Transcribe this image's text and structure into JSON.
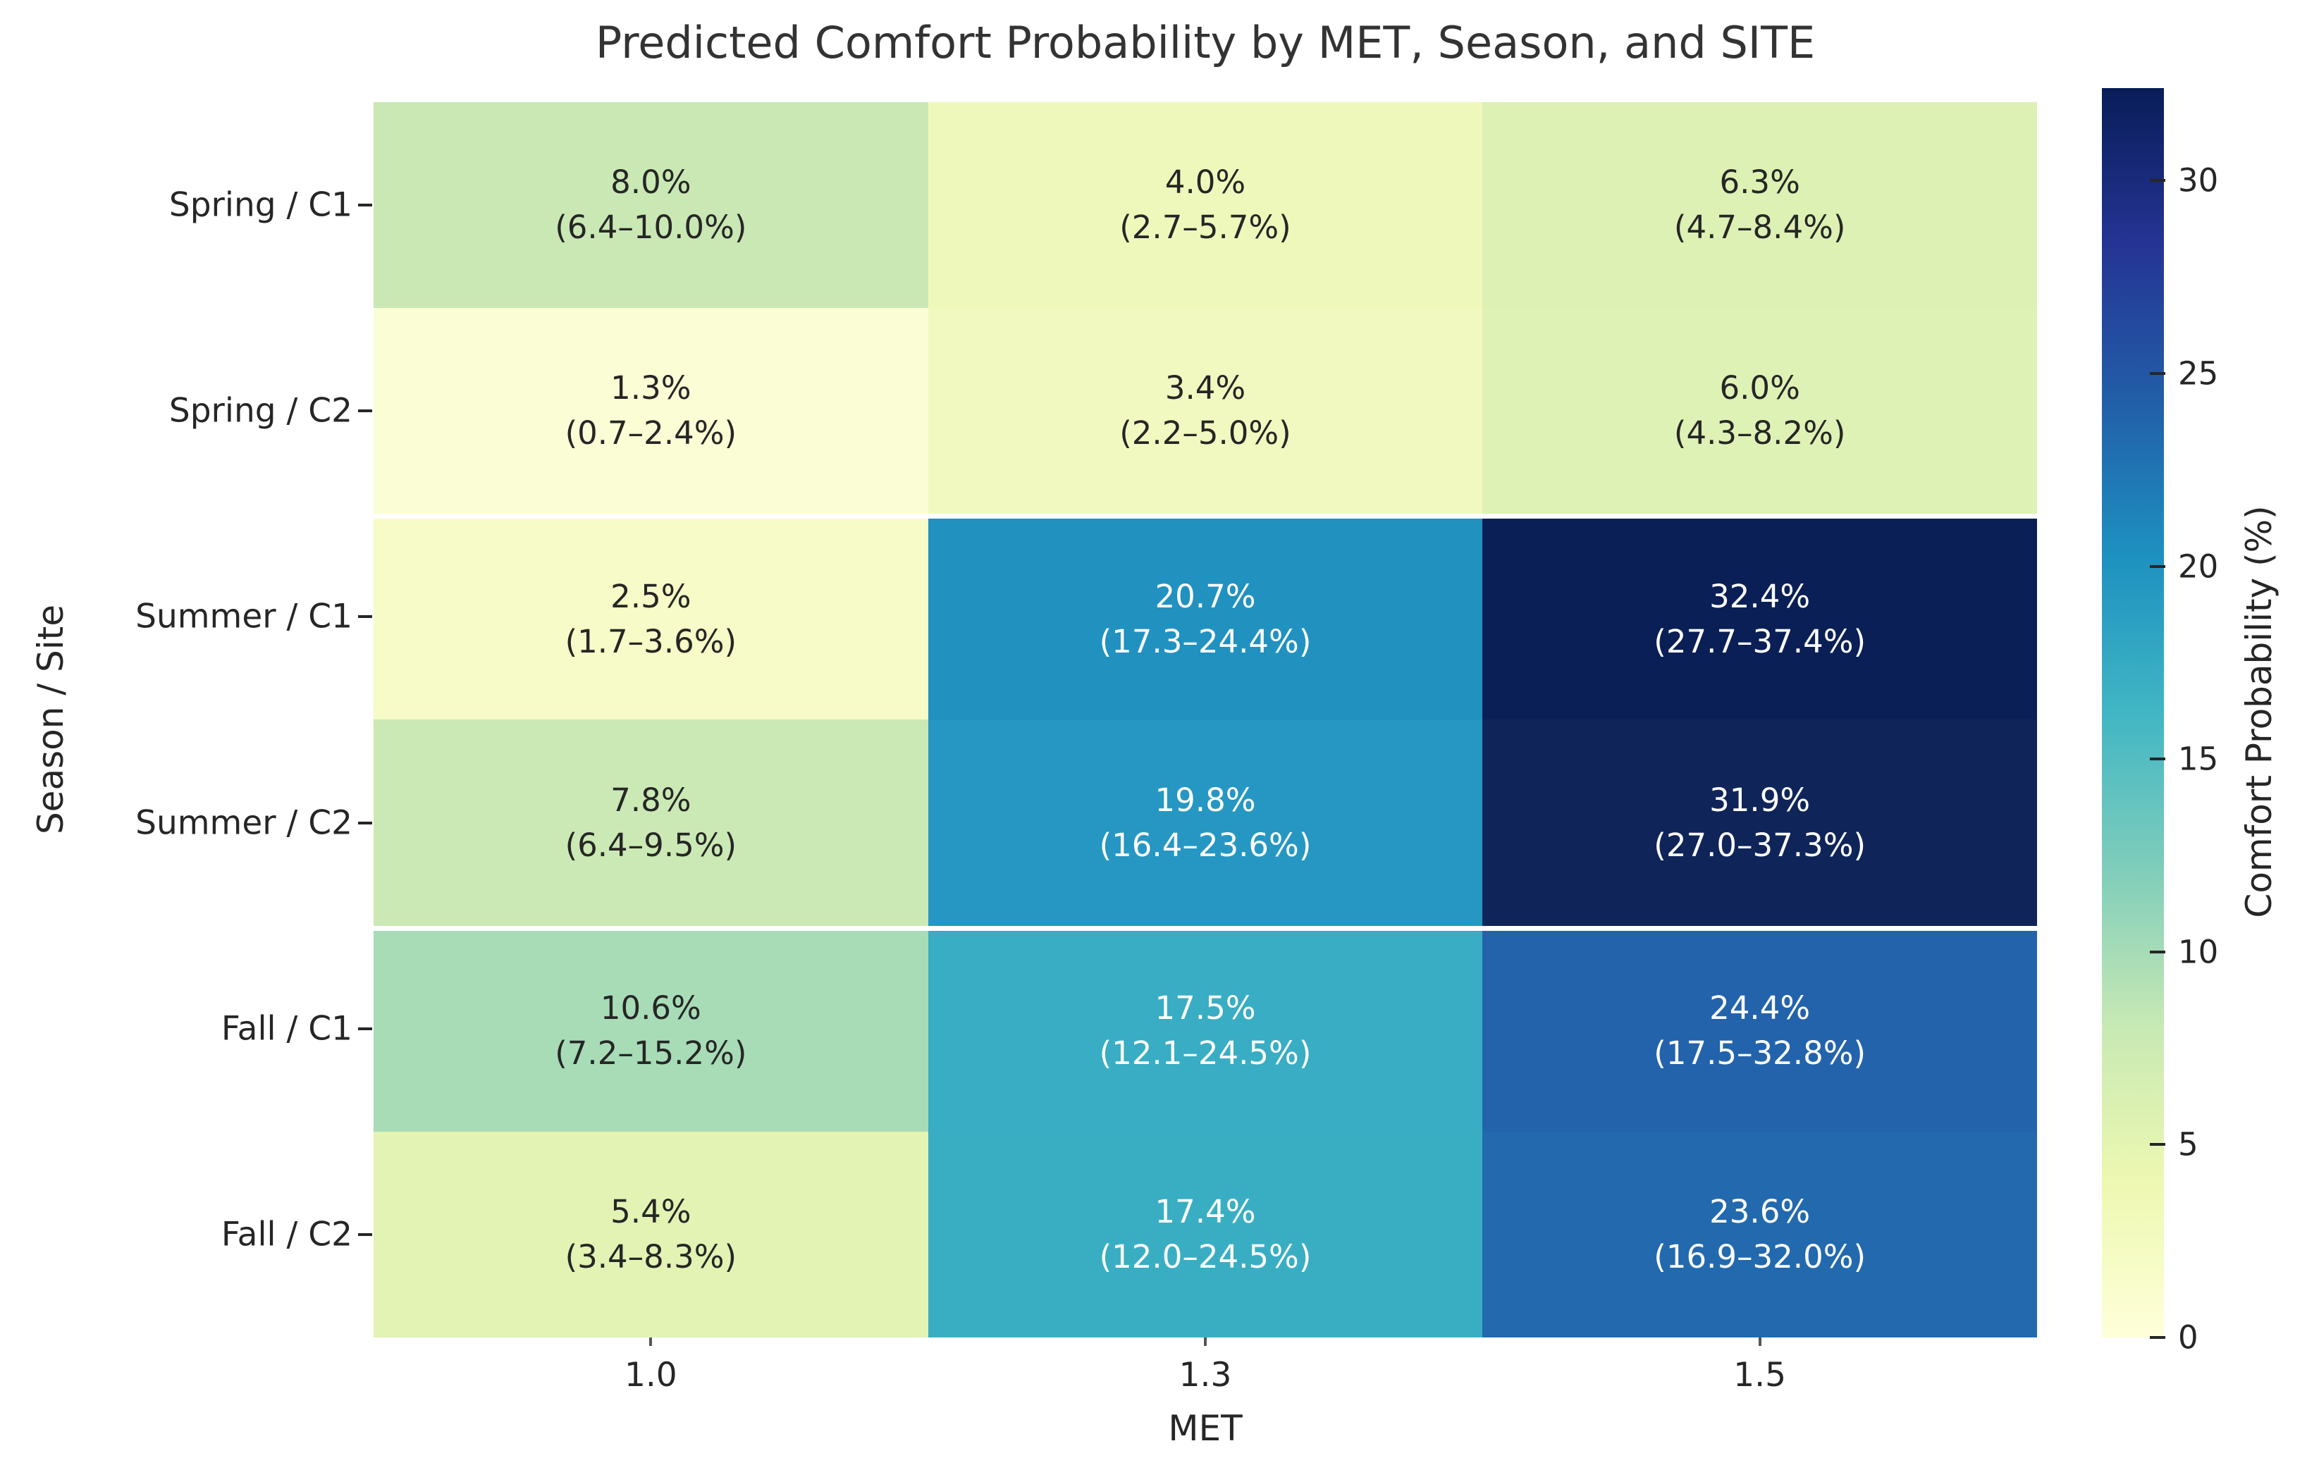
{
  "chart_data": {
    "type": "heatmap",
    "title": "Predicted Comfort Probability by MET, Season, and SITE",
    "xlabel": "MET",
    "ylabel": "Season / Site",
    "x_categories": [
      "1.0",
      "1.3",
      "1.5"
    ],
    "y_categories": [
      "Spring / C1",
      "Spring / C2",
      "Summer / C1",
      "Summer / C2",
      "Fall / C1",
      "Fall / C2"
    ],
    "season_break_rows": [
      2,
      4
    ],
    "rows": [
      {
        "label": "Spring / C1",
        "cells": [
          {
            "value": "8.0%",
            "ci": "(6.4–10.0%)",
            "pct": 8.0,
            "bg": "#c9e8b4",
            "fg": "#262626"
          },
          {
            "value": "4.0%",
            "ci": "(2.7–5.7%)",
            "pct": 4.0,
            "bg": "#eff8bb",
            "fg": "#262626"
          },
          {
            "value": "6.3%",
            "ci": "(4.7–8.4%)",
            "pct": 6.3,
            "bg": "#dcf1b3",
            "fg": "#262626"
          }
        ]
      },
      {
        "label": "Spring / C2",
        "cells": [
          {
            "value": "1.3%",
            "ci": "(0.7–2.4%)",
            "pct": 1.3,
            "bg": "#fbfdd5",
            "fg": "#262626"
          },
          {
            "value": "3.4%",
            "ci": "(2.2–5.0%)",
            "pct": 3.4,
            "bg": "#f1f9c0",
            "fg": "#262626"
          },
          {
            "value": "6.0%",
            "ci": "(4.3–8.2%)",
            "pct": 6.0,
            "bg": "#def2b5",
            "fg": "#262626"
          }
        ]
      },
      {
        "label": "Summer / C1",
        "cells": [
          {
            "value": "2.5%",
            "ci": "(1.7–3.6%)",
            "pct": 2.5,
            "bg": "#f6fbc7",
            "fg": "#262626"
          },
          {
            "value": "20.7%",
            "ci": "(17.3–24.4%)",
            "pct": 20.7,
            "bg": "#2191c0",
            "fg": "#ffffff"
          },
          {
            "value": "32.4%",
            "ci": "(27.7–37.4%)",
            "pct": 32.4,
            "bg": "#0a1f55",
            "fg": "#ffffff"
          }
        ]
      },
      {
        "label": "Summer / C2",
        "cells": [
          {
            "value": "7.8%",
            "ci": "(6.4–9.5%)",
            "pct": 7.8,
            "bg": "#cbe9b4",
            "fg": "#262626"
          },
          {
            "value": "19.8%",
            "ci": "(16.4–23.6%)",
            "pct": 19.8,
            "bg": "#2597c2",
            "fg": "#ffffff"
          },
          {
            "value": "31.9%",
            "ci": "(27.0–37.3%)",
            "pct": 31.9,
            "bg": "#0f2459",
            "fg": "#ffffff"
          }
        ]
      },
      {
        "label": "Fall / C1",
        "cells": [
          {
            "value": "10.6%",
            "ci": "(7.2–15.2%)",
            "pct": 10.6,
            "bg": "#a7dcb7",
            "fg": "#262626"
          },
          {
            "value": "17.5%",
            "ci": "(12.1–24.5%)",
            "pct": 17.5,
            "bg": "#38adc3",
            "fg": "#ffffff"
          },
          {
            "value": "24.4%",
            "ci": "(17.5–32.8%)",
            "pct": 24.4,
            "bg": "#2363ac",
            "fg": "#ffffff"
          }
        ]
      },
      {
        "label": "Fall / C2",
        "cells": [
          {
            "value": "5.4%",
            "ci": "(3.4–8.3%)",
            "pct": 5.4,
            "bg": "#e2f3b4",
            "fg": "#262626"
          },
          {
            "value": "17.4%",
            "ci": "(12.0–24.5%)",
            "pct": 17.4,
            "bg": "#39aec3",
            "fg": "#ffffff"
          },
          {
            "value": "23.6%",
            "ci": "(16.9–32.0%)",
            "pct": 23.6,
            "bg": "#2269ae",
            "fg": "#ffffff"
          }
        ]
      }
    ],
    "colorbar": {
      "label": "Comfort Probability (%)",
      "vmin": 0,
      "vmax": 32.4,
      "ticks": [
        0,
        5,
        10,
        15,
        20,
        25,
        30
      ],
      "cmap_name": "YlGnBu",
      "cmap_stops": [
        {
          "pos": 0.0,
          "color": "#ffffd9"
        },
        {
          "pos": 0.125,
          "color": "#edf8b1"
        },
        {
          "pos": 0.25,
          "color": "#c7e9b4"
        },
        {
          "pos": 0.375,
          "color": "#7fcdbb"
        },
        {
          "pos": 0.5,
          "color": "#41b6c4"
        },
        {
          "pos": 0.625,
          "color": "#1d91c0"
        },
        {
          "pos": 0.75,
          "color": "#225ea8"
        },
        {
          "pos": 0.875,
          "color": "#253494"
        },
        {
          "pos": 1.0,
          "color": "#081d58"
        }
      ]
    }
  }
}
